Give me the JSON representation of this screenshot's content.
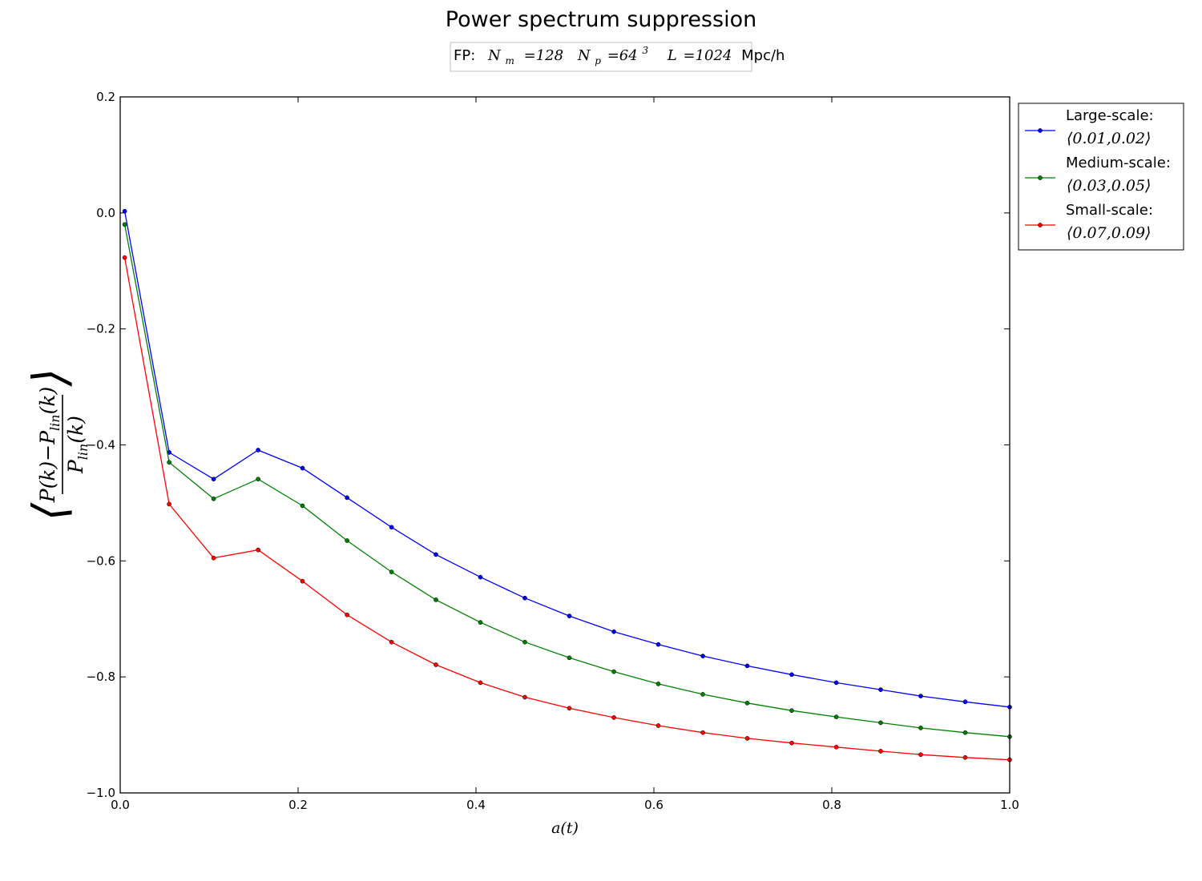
{
  "chart_data": {
    "type": "line",
    "title": "Power spectrum suppression",
    "subtitle": {
      "prefix": "FP:",
      "nm_label": "N",
      "nm_sub": "m",
      "nm_value": "=128",
      "np_label": "N",
      "np_sub": "p",
      "np_value": "=64",
      "np_sup": "3",
      "l_label": "L",
      "l_value": "=1024",
      "l_unit": "Mpc/h"
    },
    "xlabel": "a(t)",
    "ylabel": {
      "numerator": "P(k)−P",
      "numerator_sub": "lin",
      "numerator_tail": "(k)",
      "denominator": "P",
      "denominator_sub": "lin",
      "denominator_tail": "(k)"
    },
    "xlim": [
      0.0,
      1.0
    ],
    "ylim": [
      -1.0,
      0.2
    ],
    "xticks": [
      0.0,
      0.2,
      0.4,
      0.6,
      0.8,
      1.0
    ],
    "xtick_labels": [
      "0.0",
      "0.2",
      "0.4",
      "0.6",
      "0.8",
      "1.0"
    ],
    "yticks": [
      -1.0,
      -0.8,
      -0.6,
      -0.4,
      -0.2,
      0.0,
      0.2
    ],
    "ytick_labels": [
      "−1.0",
      "−0.8",
      "−0.6",
      "−0.4",
      "−0.2",
      "0.0",
      "0.2"
    ],
    "grid": false,
    "legend_position": "outside-right-top",
    "x": [
      0.005,
      0.055,
      0.105,
      0.155,
      0.205,
      0.255,
      0.305,
      0.355,
      0.405,
      0.455,
      0.505,
      0.555,
      0.605,
      0.655,
      0.705,
      0.755,
      0.805,
      0.855,
      0.9,
      0.95,
      1.0
    ],
    "series": [
      {
        "name": "Large-scale:",
        "range": "⟨0.01,0.02⟩",
        "color": "#0000ff",
        "values": [
          0.003,
          -0.413,
          -0.459,
          -0.409,
          -0.44,
          -0.491,
          -0.542,
          -0.589,
          -0.628,
          -0.664,
          -0.695,
          -0.722,
          -0.744,
          -0.764,
          -0.781,
          -0.796,
          -0.81,
          -0.822,
          -0.833,
          -0.843,
          -0.852
        ]
      },
      {
        "name": "Medium-scale:",
        "range": "⟨0.03,0.05⟩",
        "color": "#008000",
        "values": [
          -0.02,
          -0.43,
          -0.493,
          -0.459,
          -0.505,
          -0.565,
          -0.619,
          -0.667,
          -0.706,
          -0.74,
          -0.767,
          -0.791,
          -0.812,
          -0.83,
          -0.845,
          -0.858,
          -0.869,
          -0.879,
          -0.888,
          -0.896,
          -0.903
        ]
      },
      {
        "name": "Small-scale:",
        "range": "⟨0.07,0.09⟩",
        "color": "#ff0000",
        "values": [
          -0.077,
          -0.502,
          -0.595,
          -0.581,
          -0.635,
          -0.693,
          -0.74,
          -0.779,
          -0.81,
          -0.835,
          -0.854,
          -0.87,
          -0.884,
          -0.896,
          -0.906,
          -0.914,
          -0.921,
          -0.928,
          -0.934,
          -0.939,
          -0.943
        ]
      }
    ]
  }
}
